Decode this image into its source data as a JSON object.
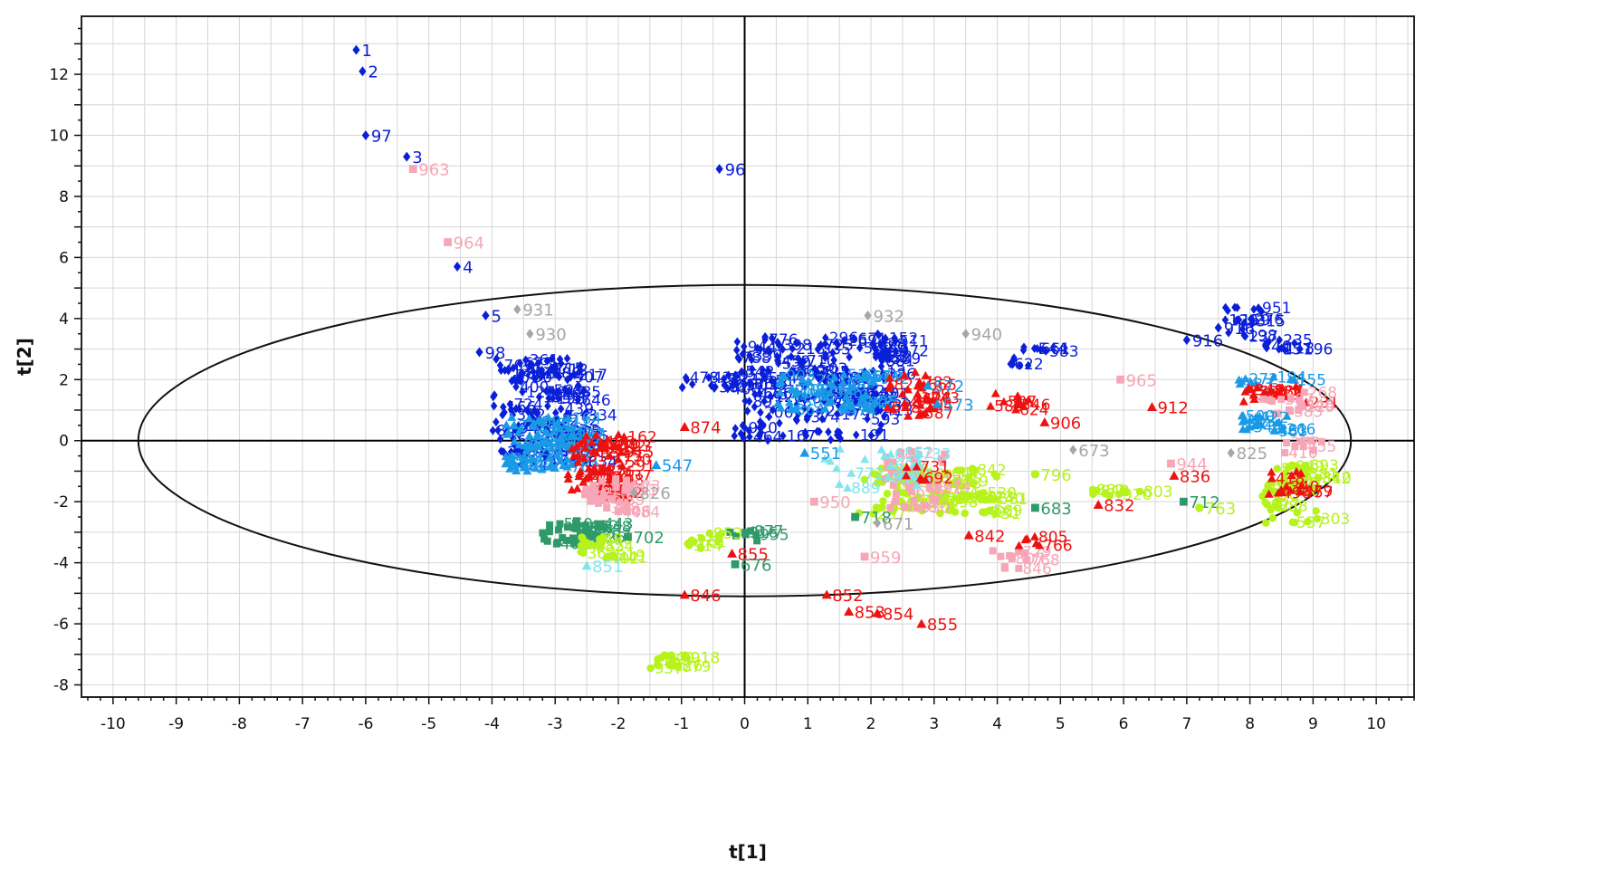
{
  "chart_data": {
    "type": "scatter",
    "title": "",
    "xlabel": "t[1]",
    "ylabel": "t[2]",
    "xlim": [
      -10.5,
      10.6
    ],
    "ylim": [
      -8.4,
      13.9
    ],
    "x_ticks": [
      -10,
      -9,
      -8,
      -7,
      -6,
      -5,
      -4,
      -3,
      -2,
      -1,
      0,
      1,
      2,
      3,
      4,
      5,
      6,
      7,
      8,
      9,
      10
    ],
    "y_ticks": [
      -8,
      -6,
      -4,
      -2,
      0,
      2,
      4,
      6,
      8,
      10,
      12
    ],
    "grid": true,
    "ellipse": {
      "cx": 0,
      "cy": 0,
      "rx": 9.6,
      "ry": 5.1
    },
    "colors": {
      "blue": "#0a1fd8",
      "light_blue": "#1a9ae6",
      "cyan": "#80e6ee",
      "red": "#ee1111",
      "pink": "#f6a6b6",
      "gray": "#a6a6a6",
      "green": "#2e9a6a",
      "lime": "#b6f21c"
    },
    "labeled_points": [
      {
        "label": "1",
        "x": -6.15,
        "y": 12.8,
        "color": "blue",
        "marker": "diamond"
      },
      {
        "label": "2",
        "x": -6.05,
        "y": 12.1,
        "color": "blue",
        "marker": "diamond"
      },
      {
        "label": "97",
        "x": -6.0,
        "y": 10.0,
        "color": "blue",
        "marker": "diamond"
      },
      {
        "label": "3",
        "x": -5.35,
        "y": 9.3,
        "color": "blue",
        "marker": "diamond"
      },
      {
        "label": "963",
        "x": -5.25,
        "y": 8.9,
        "color": "pink",
        "marker": "square"
      },
      {
        "label": "96",
        "x": -0.4,
        "y": 8.9,
        "color": "blue",
        "marker": "diamond"
      },
      {
        "label": "964",
        "x": -4.7,
        "y": 6.5,
        "color": "pink",
        "marker": "square"
      },
      {
        "label": "4",
        "x": -4.55,
        "y": 5.7,
        "color": "blue",
        "marker": "diamond"
      },
      {
        "label": "931",
        "x": -3.6,
        "y": 4.3,
        "color": "gray",
        "marker": "diamond"
      },
      {
        "label": "5",
        "x": -4.1,
        "y": 4.1,
        "color": "blue",
        "marker": "diamond"
      },
      {
        "label": "930",
        "x": -3.4,
        "y": 3.5,
        "color": "gray",
        "marker": "diamond"
      },
      {
        "label": "98",
        "x": -4.2,
        "y": 2.9,
        "color": "blue",
        "marker": "diamond"
      },
      {
        "label": "932",
        "x": 1.95,
        "y": 4.1,
        "color": "gray",
        "marker": "diamond"
      },
      {
        "label": "940",
        "x": 3.5,
        "y": 3.5,
        "color": "gray",
        "marker": "diamond"
      },
      {
        "label": "965",
        "x": 5.95,
        "y": 2.0,
        "color": "pink",
        "marker": "square"
      },
      {
        "label": "572",
        "x": 2.9,
        "y": 1.8,
        "color": "light_blue",
        "marker": "triangle"
      },
      {
        "label": "573",
        "x": 3.05,
        "y": 1.2,
        "color": "light_blue",
        "marker": "triangle"
      },
      {
        "label": "912",
        "x": 6.45,
        "y": 1.1,
        "color": "red",
        "marker": "triangle"
      },
      {
        "label": "906",
        "x": 4.75,
        "y": 0.6,
        "color": "red",
        "marker": "triangle"
      },
      {
        "label": "874",
        "x": -0.95,
        "y": 0.45,
        "color": "red",
        "marker": "triangle"
      },
      {
        "label": "673",
        "x": 5.2,
        "y": -0.3,
        "color": "gray",
        "marker": "diamond"
      },
      {
        "label": "825",
        "x": 7.7,
        "y": -0.4,
        "color": "gray",
        "marker": "diamond"
      },
      {
        "label": "551",
        "x": 0.95,
        "y": -0.4,
        "color": "light_blue",
        "marker": "triangle"
      },
      {
        "label": "547",
        "x": -1.4,
        "y": -0.8,
        "color": "light_blue",
        "marker": "triangle"
      },
      {
        "label": "826",
        "x": -1.75,
        "y": -1.7,
        "color": "gray",
        "marker": "diamond"
      },
      {
        "label": "796",
        "x": 4.6,
        "y": -1.1,
        "color": "lime",
        "marker": "circle"
      },
      {
        "label": "944",
        "x": 6.75,
        "y": -0.75,
        "color": "pink",
        "marker": "square"
      },
      {
        "label": "836",
        "x": 6.8,
        "y": -1.15,
        "color": "red",
        "marker": "triangle"
      },
      {
        "label": "683",
        "x": 4.6,
        "y": -2.2,
        "color": "green",
        "marker": "square"
      },
      {
        "label": "832",
        "x": 5.6,
        "y": -2.1,
        "color": "red",
        "marker": "triangle"
      },
      {
        "label": "950",
        "x": 1.1,
        "y": -2.0,
        "color": "pink",
        "marker": "square"
      },
      {
        "label": "718",
        "x": 1.75,
        "y": -2.5,
        "color": "green",
        "marker": "square"
      },
      {
        "label": "671",
        "x": 2.1,
        "y": -2.7,
        "color": "gray",
        "marker": "diamond"
      },
      {
        "label": "712",
        "x": 6.95,
        "y": -2.0,
        "color": "green",
        "marker": "square"
      },
      {
        "label": "763",
        "x": 7.2,
        "y": -2.2,
        "color": "lime",
        "marker": "circle"
      },
      {
        "label": "731",
        "x": 3.8,
        "y": -2.35,
        "color": "lime",
        "marker": "circle"
      },
      {
        "label": "842",
        "x": 3.55,
        "y": -3.1,
        "color": "red",
        "marker": "triangle"
      },
      {
        "label": "702",
        "x": -1.85,
        "y": -3.15,
        "color": "green",
        "marker": "square"
      },
      {
        "label": "855",
        "x": -0.2,
        "y": -3.7,
        "color": "red",
        "marker": "triangle"
      },
      {
        "label": "676",
        "x": -0.15,
        "y": -4.05,
        "color": "green",
        "marker": "square"
      },
      {
        "label": "959",
        "x": 1.9,
        "y": -3.8,
        "color": "pink",
        "marker": "square"
      },
      {
        "label": "851",
        "x": -2.5,
        "y": -4.1,
        "color": "cyan",
        "marker": "triangle"
      },
      {
        "label": "846",
        "x": -0.95,
        "y": -5.05,
        "color": "red",
        "marker": "triangle"
      },
      {
        "label": "852",
        "x": 1.3,
        "y": -5.05,
        "color": "red",
        "marker": "triangle"
      },
      {
        "label": "853",
        "x": 1.65,
        "y": -5.6,
        "color": "red",
        "marker": "triangle"
      },
      {
        "label": "854",
        "x": 2.1,
        "y": -5.65,
        "color": "red",
        "marker": "triangle"
      },
      {
        "label": "855",
        "x": 2.8,
        "y": -6.0,
        "color": "red",
        "marker": "triangle"
      },
      {
        "label": "916",
        "x": 7.5,
        "y": 3.7,
        "color": "blue",
        "marker": "diamond"
      },
      {
        "label": "916",
        "x": 7.0,
        "y": 3.3,
        "color": "blue",
        "marker": "diamond"
      },
      {
        "label": "40",
        "x": 8.25,
        "y": 3.1,
        "color": "blue",
        "marker": "diamond"
      }
    ],
    "clusters": [
      {
        "color": "blue",
        "marker": "diamond",
        "xmin": -4.0,
        "xmax": -2.5,
        "ymin": -0.8,
        "ymax": 2.7,
        "n": 150
      },
      {
        "color": "light_blue",
        "marker": "triangle",
        "xmin": -3.8,
        "xmax": -2.7,
        "ymin": -1.0,
        "ymax": 0.8,
        "n": 80
      },
      {
        "color": "red",
        "marker": "triangle",
        "xmin": -2.8,
        "xmax": -1.9,
        "ymin": -1.9,
        "ymax": 0.2,
        "n": 70
      },
      {
        "color": "pink",
        "marker": "square",
        "xmin": -2.6,
        "xmax": -1.8,
        "ymin": -2.4,
        "ymax": -1.2,
        "n": 30
      },
      {
        "color": "green",
        "marker": "square",
        "xmin": -3.2,
        "xmax": -2.2,
        "ymin": -3.4,
        "ymax": -2.6,
        "n": 35
      },
      {
        "color": "lime",
        "marker": "circle",
        "xmin": -2.6,
        "xmax": -2.0,
        "ymin": -3.9,
        "ymax": -3.1,
        "n": 20
      },
      {
        "color": "blue",
        "marker": "diamond",
        "xmin": -1.0,
        "xmax": 0.0,
        "ymin": 1.7,
        "ymax": 2.2,
        "n": 14
      },
      {
        "color": "blue",
        "marker": "diamond",
        "xmin": -0.2,
        "xmax": 2.3,
        "ymin": 0.0,
        "ymax": 3.5,
        "n": 190
      },
      {
        "color": "light_blue",
        "marker": "triangle",
        "xmin": 0.5,
        "xmax": 2.2,
        "ymin": 1.0,
        "ymax": 2.2,
        "n": 60
      },
      {
        "color": "blue",
        "marker": "diamond",
        "xmin": 2.0,
        "xmax": 2.4,
        "ymin": 2.6,
        "ymax": 3.5,
        "n": 18
      },
      {
        "color": "red",
        "marker": "triangle",
        "xmin": 2.2,
        "xmax": 3.0,
        "ymin": 0.8,
        "ymax": 2.3,
        "n": 30
      },
      {
        "color": "red",
        "marker": "triangle",
        "xmin": 3.7,
        "xmax": 4.5,
        "ymin": 1.0,
        "ymax": 1.6,
        "n": 10
      },
      {
        "color": "blue",
        "marker": "diamond",
        "xmin": 4.2,
        "xmax": 4.8,
        "ymin": 2.2,
        "ymax": 3.2,
        "n": 12
      },
      {
        "color": "lime",
        "marker": "circle",
        "xmin": 1.8,
        "xmax": 4.0,
        "ymin": -2.4,
        "ymax": -0.9,
        "n": 90
      },
      {
        "color": "pink",
        "marker": "square",
        "xmin": 2.2,
        "xmax": 3.2,
        "ymin": -2.2,
        "ymax": -0.3,
        "n": 30
      },
      {
        "color": "cyan",
        "marker": "triangle",
        "xmin": 1.0,
        "xmax": 2.8,
        "ymin": -1.6,
        "ymax": -0.2,
        "n": 20
      },
      {
        "color": "red",
        "marker": "triangle",
        "xmin": 2.5,
        "xmax": 3.0,
        "ymin": -1.3,
        "ymax": -0.8,
        "n": 6
      },
      {
        "color": "pink",
        "marker": "square",
        "xmin": 3.9,
        "xmax": 4.5,
        "ymin": -4.2,
        "ymax": -3.6,
        "n": 12
      },
      {
        "color": "red",
        "marker": "triangle",
        "xmin": 4.3,
        "xmax": 4.9,
        "ymin": -3.5,
        "ymax": -3.1,
        "n": 6
      },
      {
        "color": "lime",
        "marker": "circle",
        "xmin": 5.5,
        "xmax": 6.4,
        "ymin": -1.9,
        "ymax": -1.4,
        "n": 10
      },
      {
        "color": "lime",
        "marker": "circle",
        "xmin": -1.5,
        "xmax": -0.9,
        "ymin": -7.5,
        "ymax": -7.0,
        "n": 16
      },
      {
        "color": "green",
        "marker": "square",
        "xmin": -0.3,
        "xmax": 0.3,
        "ymin": -3.3,
        "ymax": -2.9,
        "n": 8
      },
      {
        "color": "lime",
        "marker": "circle",
        "xmin": -1.0,
        "xmax": -0.3,
        "ymin": -3.6,
        "ymax": -2.9,
        "n": 10
      },
      {
        "color": "blue",
        "marker": "diamond",
        "xmin": 7.6,
        "xmax": 8.2,
        "ymin": 3.4,
        "ymax": 4.5,
        "n": 20
      },
      {
        "color": "blue",
        "marker": "diamond",
        "xmin": 8.2,
        "xmax": 8.8,
        "ymin": 2.9,
        "ymax": 3.3,
        "n": 10
      },
      {
        "color": "light_blue",
        "marker": "triangle",
        "xmin": 7.8,
        "xmax": 8.8,
        "ymin": 1.8,
        "ymax": 2.1,
        "n": 10
      },
      {
        "color": "red",
        "marker": "triangle",
        "xmin": 7.9,
        "xmax": 8.9,
        "ymin": 1.2,
        "ymax": 1.8,
        "n": 20
      },
      {
        "color": "pink",
        "marker": "square",
        "xmin": 8.2,
        "xmax": 9.0,
        "ymin": 0.8,
        "ymax": 1.7,
        "n": 15
      },
      {
        "color": "light_blue",
        "marker": "triangle",
        "xmin": 7.8,
        "xmax": 8.6,
        "ymin": 0.3,
        "ymax": 0.9,
        "n": 20
      },
      {
        "color": "lime",
        "marker": "circle",
        "xmin": 8.2,
        "xmax": 9.1,
        "ymin": -2.7,
        "ymax": -0.8,
        "n": 50
      },
      {
        "color": "red",
        "marker": "triangle",
        "xmin": 8.3,
        "xmax": 8.9,
        "ymin": -1.8,
        "ymax": -1.0,
        "n": 14
      },
      {
        "color": "pink",
        "marker": "square",
        "xmin": 8.5,
        "xmax": 9.2,
        "ymin": -0.5,
        "ymax": 0.0,
        "n": 8
      }
    ]
  }
}
